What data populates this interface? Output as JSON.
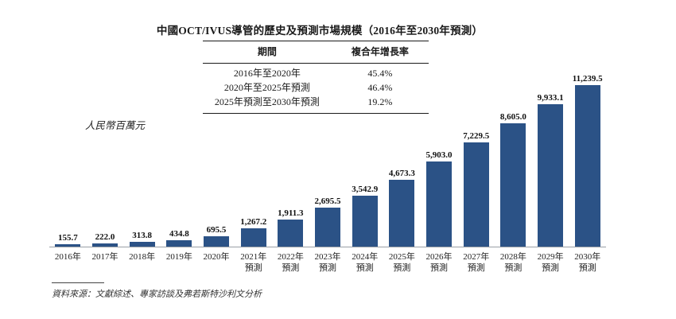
{
  "title": "中國OCT/IVUS導管的歷史及預測市場規模（2016年至2030年預測）",
  "cagr_table": {
    "headers": [
      "期間",
      "複合年增長率"
    ],
    "rows": [
      {
        "period": "2016年至2020年",
        "cagr": "45.4%"
      },
      {
        "period": "2020年至2025年預測",
        "cagr": "46.4%"
      },
      {
        "period": "2025年預測至2030年預測",
        "cagr": "19.2%"
      }
    ]
  },
  "source": "資料來源：文獻綜述、專家訪談及弗若斯特沙利文分析",
  "chart_data": {
    "type": "bar",
    "title": "中國OCT/IVUS導管的歷史及預測市場規模（2016年至2030年預測）",
    "ylabel": "人民幣百萬元",
    "categories": [
      {
        "year": "2016年",
        "sub": ""
      },
      {
        "year": "2017年",
        "sub": ""
      },
      {
        "year": "2018年",
        "sub": ""
      },
      {
        "year": "2019年",
        "sub": ""
      },
      {
        "year": "2020年",
        "sub": ""
      },
      {
        "year": "2021年",
        "sub": "預測"
      },
      {
        "year": "2022年",
        "sub": "預測"
      },
      {
        "year": "2023年",
        "sub": "預測"
      },
      {
        "year": "2024年",
        "sub": "預測"
      },
      {
        "year": "2025年",
        "sub": "預測"
      },
      {
        "year": "2026年",
        "sub": "預測"
      },
      {
        "year": "2027年",
        "sub": "預測"
      },
      {
        "year": "2028年",
        "sub": "預測"
      },
      {
        "year": "2029年",
        "sub": "預測"
      },
      {
        "year": "2030年",
        "sub": "預測"
      }
    ],
    "values": [
      155.7,
      222.0,
      313.8,
      434.8,
      695.5,
      1267.2,
      1911.3,
      2695.5,
      3542.9,
      4673.3,
      5903.0,
      7229.5,
      8605.0,
      9933.1,
      11239.5
    ],
    "value_labels": [
      "155.7",
      "222.0",
      "313.8",
      "434.8",
      "695.5",
      "1,267.2",
      "1,911.3",
      "2,695.5",
      "3,542.9",
      "4,673.3",
      "5,903.0",
      "7,229.5",
      "8,605.0",
      "9,933.1",
      "11,239.5"
    ],
    "bar_color": "#2B5286",
    "ylim": [
      0,
      11239.5
    ],
    "grid": false,
    "legend_position": "none"
  }
}
